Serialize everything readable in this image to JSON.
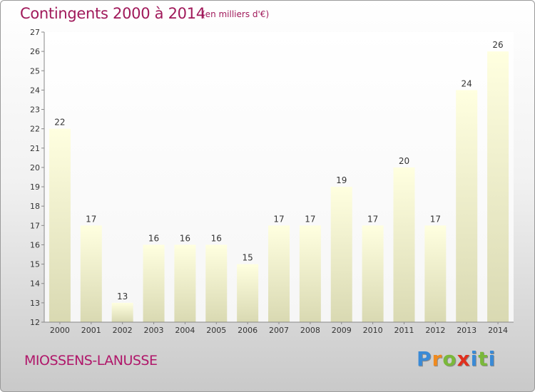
{
  "title": "Contingents 2000 à 2014",
  "subtitle": "(en milliers d'€)",
  "commune": "MIOSSENS-LANUSSE",
  "logo": {
    "letters": [
      "P",
      "r",
      "o",
      "x",
      "i",
      "t",
      "i"
    ]
  },
  "chart_data": {
    "type": "bar",
    "categories": [
      "2000",
      "2001",
      "2002",
      "2003",
      "2004",
      "2005",
      "2006",
      "2007",
      "2008",
      "2009",
      "2010",
      "2011",
      "2012",
      "2013",
      "2014"
    ],
    "values": [
      22,
      17,
      13,
      16,
      16,
      16,
      15,
      17,
      17,
      19,
      17,
      20,
      17,
      24,
      26
    ],
    "ylim": [
      12,
      27
    ],
    "yticks": [
      12,
      13,
      14,
      15,
      16,
      17,
      18,
      19,
      20,
      21,
      22,
      23,
      24,
      25,
      26,
      27
    ],
    "grid": false,
    "bar_color_top": "#ffffe0",
    "bar_color_bottom": "#d8d8b0"
  }
}
